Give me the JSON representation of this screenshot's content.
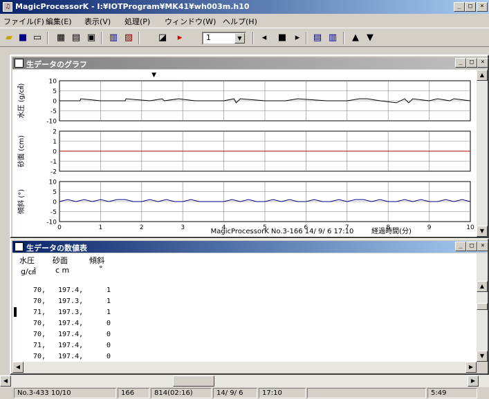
{
  "window": {
    "title": "MagicProcessorK - I:¥IOTProgram¥MK41¥wh003m.h10"
  },
  "menu": [
    "ファイル(F)",
    "編集(E)",
    "表示(V)",
    "処理(P)",
    "ウィンドウ(W)",
    "ヘルプ(H)"
  ],
  "toolbar": {
    "zoom_value": "1",
    "icons": [
      "open-icon",
      "save-icon",
      "new-icon",
      "table-icon",
      "graph-icon",
      "monitor-icon",
      "list-icon",
      "chart-icon",
      "export-icon",
      "play-icon",
      "prev-icon",
      "stop-icon",
      "next-icon",
      "tile-h-icon",
      "tile-v-icon",
      "cursor-up-icon",
      "cursor-down-icon"
    ]
  },
  "graph": {
    "title": "生データのグラフ",
    "caption": "MagicProcessorK No.3-166 14/ 9/ 6 17:10",
    "xlabel": "経過時間(分)"
  },
  "chart_data": [
    {
      "type": "line",
      "ylabel": "水圧 (g/㎠)",
      "yticks": [
        "10",
        "5",
        "0",
        "-5",
        "-10"
      ],
      "ylim": [
        -10,
        10
      ],
      "x_ticks": [
        "0",
        "1",
        "2",
        "3",
        "4",
        "5",
        "6",
        "7",
        "8",
        "9",
        "10"
      ],
      "xlim": [
        0,
        10
      ],
      "series": [
        {
          "color": "#000000",
          "x": [
            0,
            0.5,
            0.52,
            1.0,
            1.3,
            1.6,
            1.62,
            2.2,
            2.5,
            2.55,
            2.9,
            3.3,
            4.0,
            4.25,
            4.3,
            4.4,
            5.0,
            5.5,
            5.8,
            6.5,
            7.0,
            7.3,
            7.35,
            7.4,
            7.45,
            7.5,
            7.8,
            8.2,
            8.4,
            8.5,
            8.6,
            9.0,
            9.2,
            9.5,
            9.6,
            10.0
          ],
          "y": [
            0,
            0,
            1,
            0,
            0,
            0,
            1,
            0,
            1,
            0,
            1,
            0,
            0,
            1,
            -1,
            1,
            0,
            0,
            1,
            0,
            0,
            1,
            1,
            1,
            1,
            1,
            0,
            -1,
            1,
            -1,
            1,
            0,
            1,
            0,
            1,
            0
          ]
        }
      ]
    },
    {
      "type": "line",
      "ylabel": "砂面 (cm)",
      "yticks": [
        "2",
        "1",
        "0",
        "-1",
        "-2"
      ],
      "ylim": [
        -2,
        2
      ],
      "x_ticks": [
        "0",
        "1",
        "2",
        "3",
        "4",
        "5",
        "6",
        "7",
        "8",
        "9",
        "10"
      ],
      "xlim": [
        0,
        10
      ],
      "series": [
        {
          "color": "#b00000",
          "x": [
            0,
            10
          ],
          "y": [
            0,
            0
          ]
        }
      ]
    },
    {
      "type": "line",
      "ylabel": "傾斜 (°)",
      "yticks": [
        "10",
        "5",
        "0",
        "-5",
        "-10"
      ],
      "ylim": [
        -10,
        10
      ],
      "x_ticks": [
        "0",
        "1",
        "2",
        "3",
        "4",
        "5",
        "6",
        "7",
        "8",
        "9",
        "10"
      ],
      "xlim": [
        0,
        10
      ],
      "series": [
        {
          "color": "#000080",
          "x": [
            0,
            0.2,
            0.4,
            0.6,
            0.8,
            1.0,
            1.2,
            1.4,
            1.6,
            1.8,
            2.0,
            2.2,
            2.4,
            2.6,
            2.8,
            3.0,
            3.2,
            3.4,
            3.6,
            3.8,
            4.0,
            4.2,
            4.4,
            4.6,
            4.8,
            5.0,
            5.2,
            5.4,
            5.6,
            5.8,
            6.0,
            6.2,
            6.4,
            6.6,
            6.8,
            7.0,
            7.2,
            7.4,
            7.6,
            7.8,
            8.0,
            8.2,
            8.4,
            8.6,
            8.8,
            9.0,
            9.2,
            9.4,
            9.6,
            9.8,
            10.0
          ],
          "y": [
            0,
            1,
            0,
            1,
            0,
            1,
            0,
            1,
            1,
            0,
            0,
            1,
            0,
            1,
            0,
            0,
            1,
            0,
            0,
            0,
            0,
            1,
            0,
            1,
            0,
            0,
            1,
            0,
            1,
            0,
            0,
            1,
            0,
            0,
            1,
            0,
            1,
            1,
            0,
            1,
            0,
            0,
            1,
            0,
            1,
            0,
            0,
            1,
            0,
            1,
            0
          ]
        }
      ]
    }
  ],
  "table": {
    "title": "生データの数値表",
    "headers": [
      {
        "name": "水圧",
        "unit": "g/㎠"
      },
      {
        "name": "砂面",
        "unit": "c m"
      },
      {
        "name": "傾斜",
        "unit": "°"
      }
    ],
    "rows": [
      [
        "70,",
        "197.4,",
        "1"
      ],
      [
        "70,",
        "197.3,",
        "1"
      ],
      [
        "71,",
        "197.3,",
        "1"
      ],
      [
        "70,",
        "197.4,",
        "0"
      ],
      [
        "70,",
        "197.4,",
        "0"
      ],
      [
        "71,",
        "197.4,",
        "0"
      ],
      [
        "70,",
        "197.4,",
        "0"
      ]
    ]
  },
  "status": [
    "No.3-433 10/10",
    "166",
    "814(02:16)",
    "14/ 9/ 6",
    "17:10",
    "",
    "5:49"
  ]
}
